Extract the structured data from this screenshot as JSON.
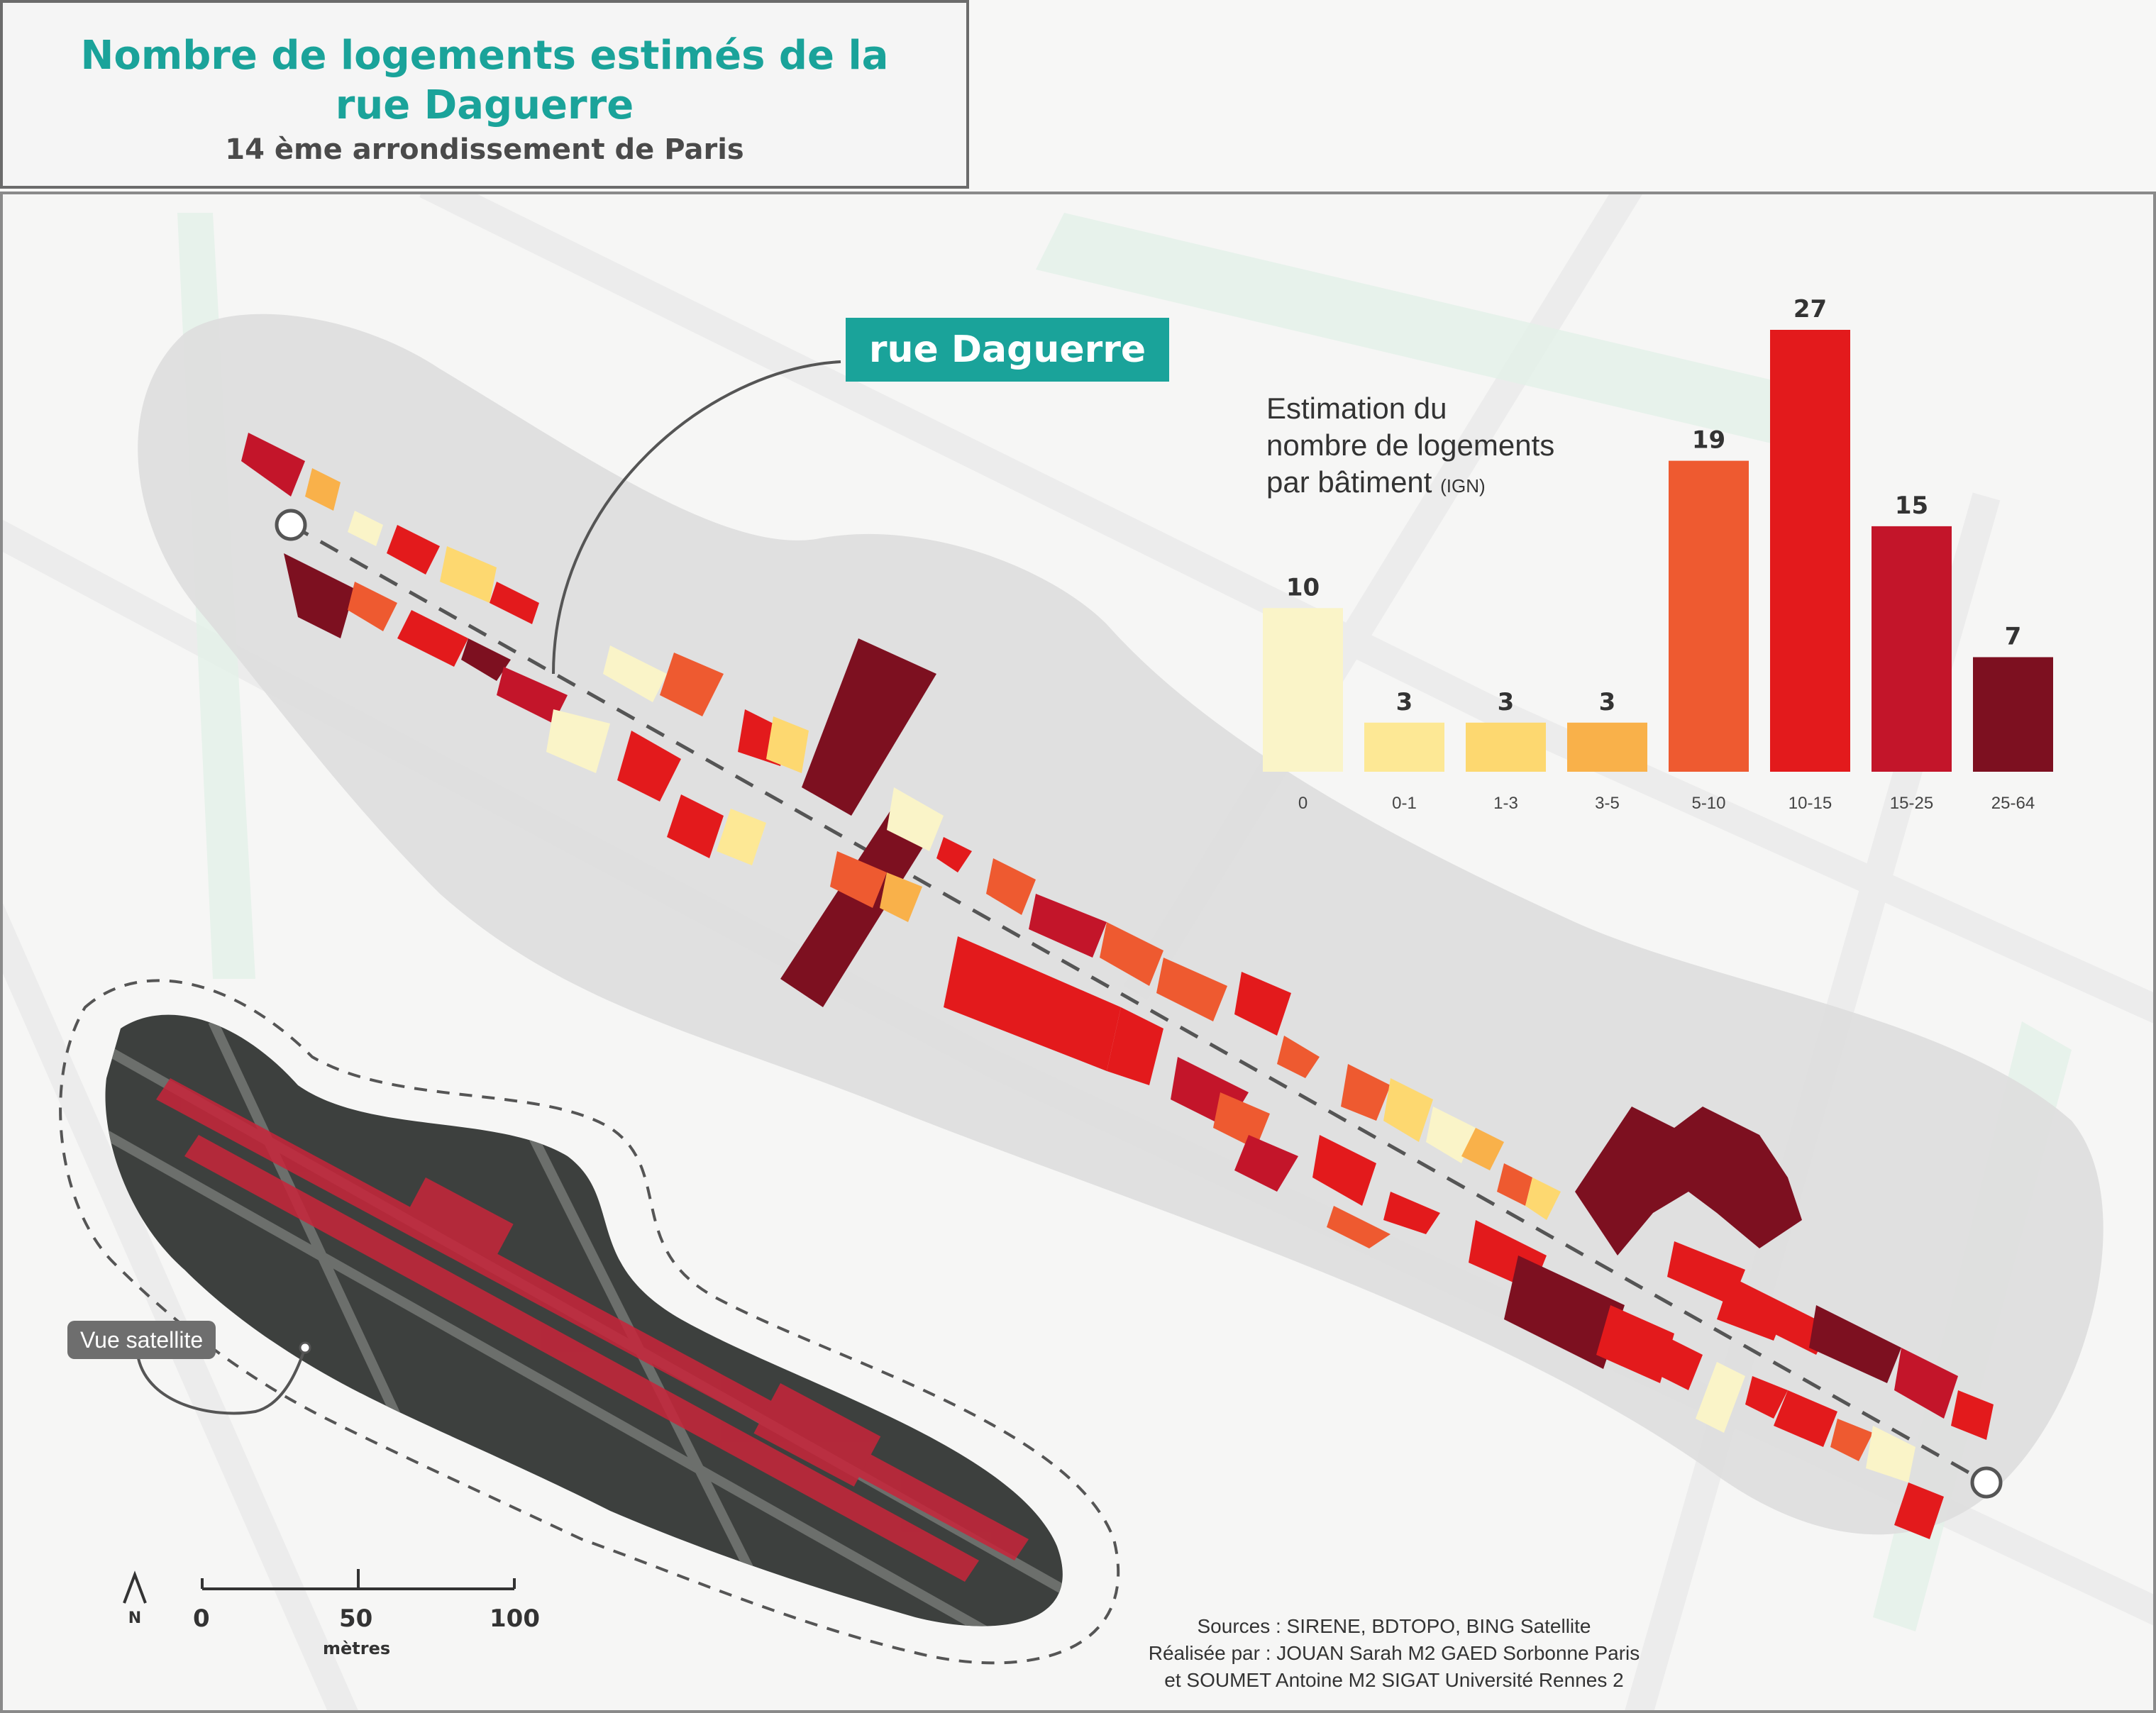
{
  "title": {
    "line1": "Nombre de logements estimés de la",
    "line2": "rue Daguerre",
    "subtitle": "14 ème arrondissement de Paris"
  },
  "street_label": "rue Daguerre",
  "satellite_label": "Vue satellite",
  "north_label": "N",
  "scale": {
    "ticks": [
      "0",
      "50",
      "100"
    ],
    "unit": "mètres"
  },
  "sources": {
    "line1": "Sources :  SIRENE, BDTOPO, BING Satellite",
    "line2": "Réalisée par : JOUAN Sarah M2 GAED Sorbonne Paris",
    "line3": "et SOUMET Antoine M2 SIGAT Université Rennes 2"
  },
  "chart_data": {
    "type": "bar",
    "title_lines": [
      "Estimation du",
      "nombre de logements",
      "par bâtiment"
    ],
    "title_unit": "(IGN)",
    "categories": [
      "0",
      "0-1",
      "1-3",
      "3-5",
      "5-10",
      "10-15",
      "15-25",
      "25-64"
    ],
    "values": [
      10,
      3,
      3,
      3,
      19,
      27,
      15,
      7
    ],
    "colors": [
      "#faf4c8",
      "#fde895",
      "#fdd870",
      "#f9b14a",
      "#ee5a30",
      "#e31a1c",
      "#c3152a",
      "#7d1020"
    ],
    "ylim": [
      0,
      27
    ]
  },
  "colors": {
    "accent": "#1aa39a",
    "title_border": "#6b6b6b",
    "street_buffer": "#dedede"
  }
}
